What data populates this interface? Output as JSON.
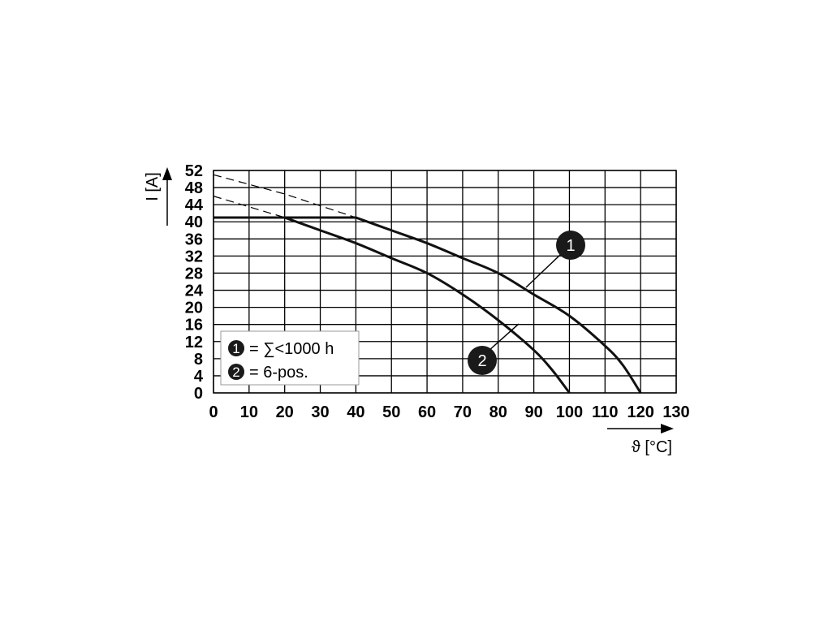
{
  "chart_data": {
    "type": "line",
    "xlabel": "ϑ [°C]",
    "ylabel": "I [A]",
    "xlim": [
      0,
      130
    ],
    "ylim": [
      0,
      52
    ],
    "x_ticks": [
      "0",
      "10",
      "20",
      "30",
      "40",
      "50",
      "60",
      "70",
      "80",
      "90",
      "100",
      "110",
      "120",
      "130"
    ],
    "y_ticks": [
      "0",
      "4",
      "8",
      "12",
      "16",
      "20",
      "24",
      "28",
      "32",
      "36",
      "40",
      "44",
      "48",
      "52"
    ],
    "grid": "on",
    "series": [
      {
        "marker": "1",
        "dash_extension": {
          "x": [
            0,
            20,
            40
          ],
          "y": [
            51,
            46.5,
            41
          ]
        },
        "x": [
          0,
          40,
          50,
          60,
          70,
          80,
          90,
          100,
          110,
          115,
          120
        ],
        "y": [
          41,
          41,
          38,
          35,
          31.5,
          28,
          23,
          18,
          11,
          6.5,
          0
        ]
      },
      {
        "marker": "2",
        "dash_extension": {
          "x": [
            0,
            20
          ],
          "y": [
            46,
            41
          ]
        },
        "x": [
          0,
          20,
          30,
          40,
          50,
          60,
          70,
          80,
          90,
          95,
          100
        ],
        "y": [
          41,
          41,
          38,
          35,
          31.5,
          28,
          23,
          17,
          10,
          5.5,
          0
        ]
      }
    ],
    "legend": {
      "placement": "bottom-left",
      "entries": [
        {
          "marker": "1",
          "text": "= ∑<1000 h"
        },
        {
          "marker": "2",
          "text": "= 6-pos."
        }
      ]
    }
  }
}
